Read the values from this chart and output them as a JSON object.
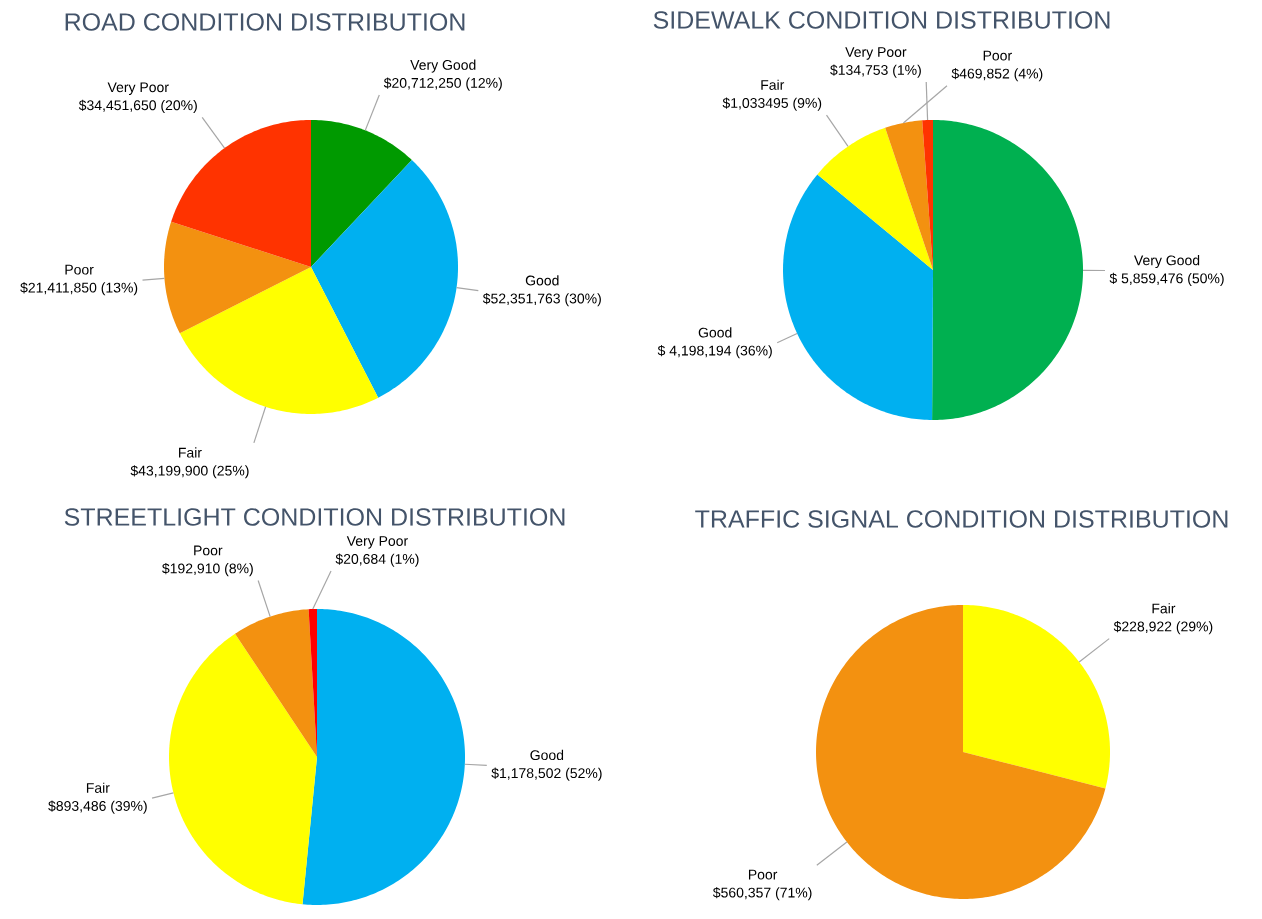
{
  "chart_data": [
    {
      "type": "pie",
      "title": "ROAD CONDITION DISTRIBUTION",
      "categories": [
        "Very Good",
        "Good",
        "Fair",
        "Poor",
        "Very Poor"
      ],
      "values": [
        20712250,
        52351763,
        43199900,
        21411850,
        34451650
      ],
      "colors": [
        "#009a00",
        "#00b0f0",
        "#ffff00",
        "#f39110",
        "#ff3300"
      ],
      "value_labels": [
        "$20,712,250 (12%)",
        "$52,351,763 (30%)",
        "$43,199,900 (25%)",
        "$21,411,850 (13%)",
        "$34,451,650 (20%)"
      ]
    },
    {
      "type": "pie",
      "title": "SIDEWALK CONDITION DISTRIBUTION",
      "categories": [
        "Very Good",
        "Good",
        "Fair",
        "Poor",
        "Very Poor"
      ],
      "values": [
        5859476,
        4198194,
        1033495,
        469852,
        134753
      ],
      "colors": [
        "#00b050",
        "#00b0f0",
        "#ffff00",
        "#f39110",
        "#ff3300"
      ],
      "value_labels": [
        "$ 5,859,476 (50%)",
        "$ 4,198,194 (36%)",
        "$1,033495 (9%)",
        "$469,852 (4%)",
        "$134,753 (1%)"
      ]
    },
    {
      "type": "pie",
      "title": "STREETLIGHT CONDITION DISTRIBUTION",
      "categories": [
        "Good",
        "Fair",
        "Poor",
        "Very Poor"
      ],
      "values": [
        1178502,
        893486,
        192910,
        20684
      ],
      "colors": [
        "#00b0f0",
        "#ffff00",
        "#f39110",
        "#ff0000"
      ],
      "value_labels": [
        "$1,178,502 (52%)",
        "$893,486 (39%)",
        "$192,910 (8%)",
        "$20,684 (1%)"
      ]
    },
    {
      "type": "pie",
      "title": "TRAFFIC SIGNAL CONDITION DISTRIBUTION",
      "categories": [
        "Fair",
        "Poor"
      ],
      "values": [
        228922,
        560357
      ],
      "colors": [
        "#ffff00",
        "#f39110"
      ],
      "value_labels": [
        "$228,922 (29%)",
        "$560,357 (71%)"
      ]
    }
  ]
}
